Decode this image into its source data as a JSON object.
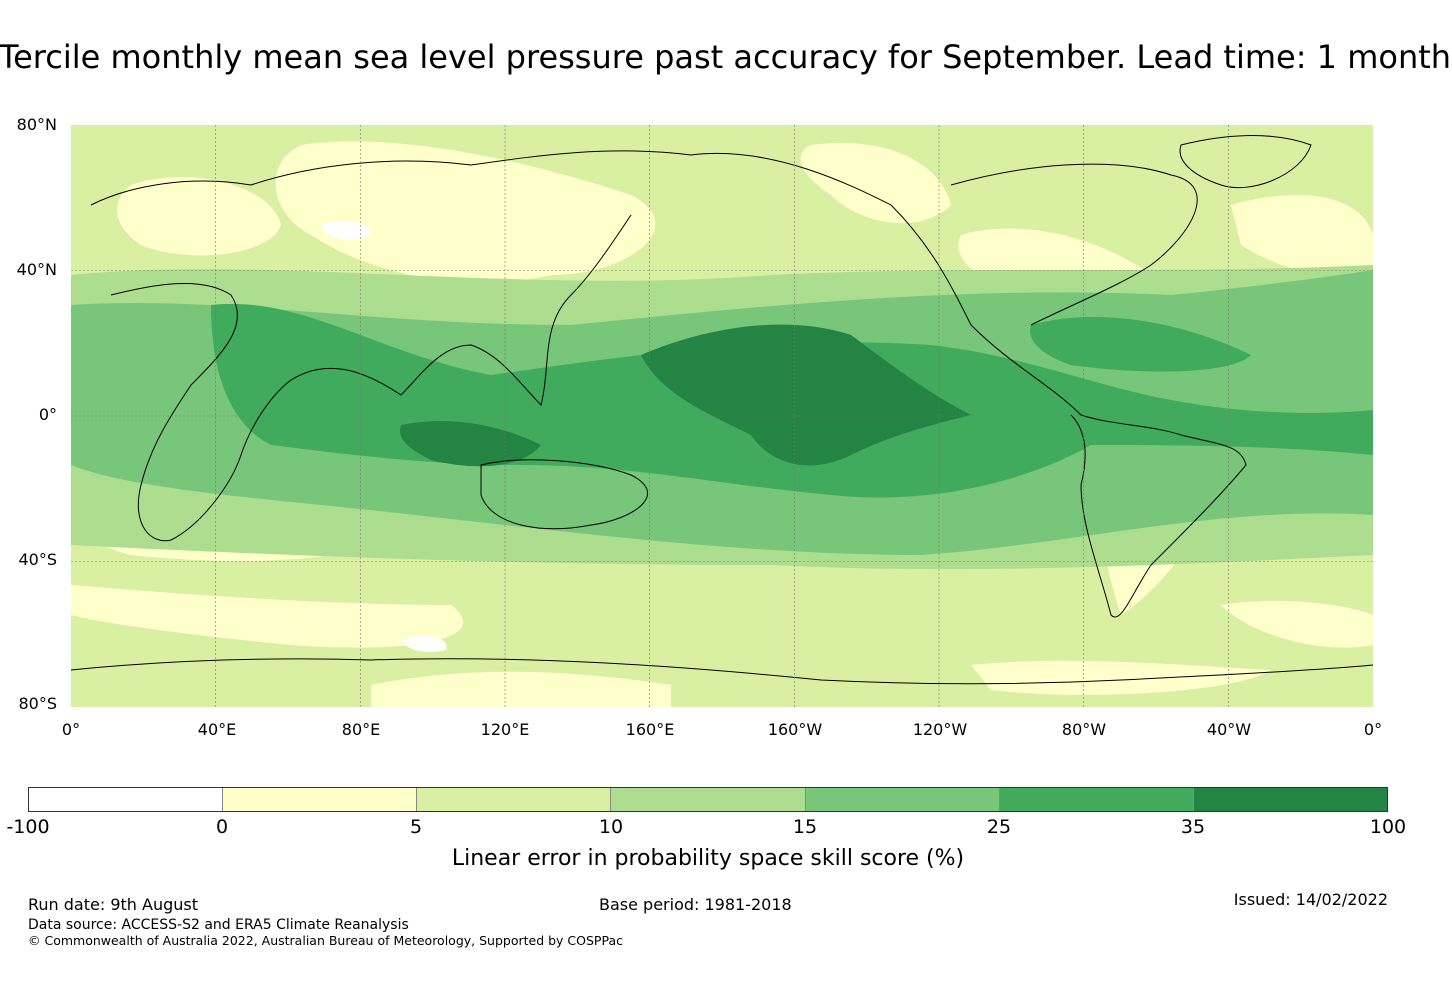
{
  "title": "Tercile monthly mean sea level pressure past accuracy for September. Lead time: 1 month",
  "map": {
    "lat_labels": [
      "80°N",
      "40°N",
      "0°",
      "40°S",
      "80°S"
    ],
    "lon_labels": [
      "0°",
      "40°E",
      "80°E",
      "120°E",
      "160°E",
      "160°W",
      "120°W",
      "80°W",
      "40°W",
      "0°"
    ]
  },
  "colorbar": {
    "ticks": [
      "-100",
      "0",
      "5",
      "10",
      "15",
      "25",
      "35",
      "100"
    ],
    "colors": [
      "#ffffff",
      "#ffffcc",
      "#d9f0a3",
      "#addd8e",
      "#78c679",
      "#41ab5d",
      "#238443"
    ],
    "label": "Linear error in probability space skill score (%)"
  },
  "footer": {
    "run_date": "Run date: 9th August",
    "base_period": "Base period: 1981-2018",
    "issued": "Issued: 14/02/2022",
    "data_source": "Data source: ACCESS-S2 and ERA5 Climate Reanalysis",
    "copyright": "© Commonwealth of Australia 2022, Australian Bureau of Meteorology, Supported by COSPPac"
  }
}
